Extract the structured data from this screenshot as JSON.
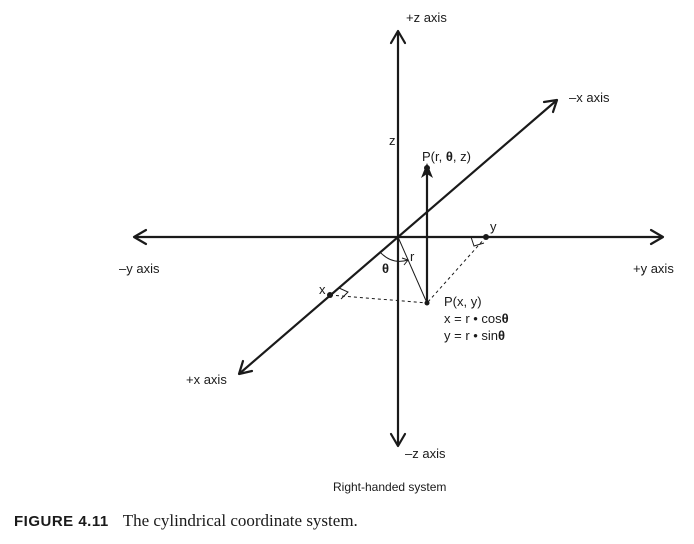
{
  "axes": {
    "pos_z": "+z axis",
    "neg_z": "–z axis",
    "pos_y": "+y axis",
    "neg_y": "–y axis",
    "pos_x": "+x axis",
    "neg_x": "–x axis"
  },
  "labels": {
    "z": "z",
    "point_cyl": "P(r, ",
    "point_cyl_theta": "θ",
    "point_cyl_end": ", z)",
    "r": "r",
    "theta": "θ",
    "x": "x",
    "y": "y",
    "point_xy": "P(x, y)",
    "x_eq": "x = r • cos",
    "y_eq": "y = r • sin",
    "eq_theta": "θ"
  },
  "subtitle": "Right-handed system",
  "caption": {
    "figure": "FIGURE 4.11",
    "text": "The cylindrical coordinate system."
  }
}
